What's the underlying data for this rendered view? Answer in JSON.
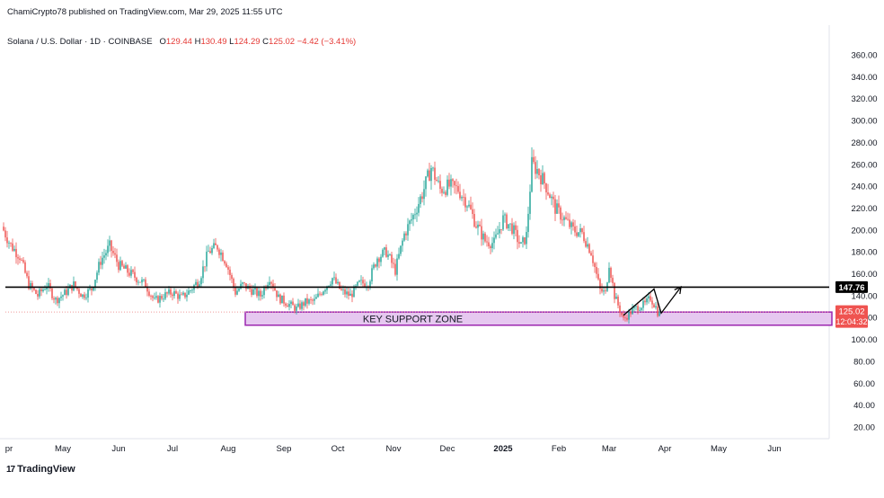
{
  "header": {
    "publisher": "ChamiCrypto78 published on TradingView.com, Mar 29, 2025 11:55 UTC",
    "symbol": "Solana / U.S. Dollar · 1D · COINBASE",
    "ohlc": [
      {
        "k": "O",
        "v": "129.44"
      },
      {
        "k": "H",
        "v": "130.49"
      },
      {
        "k": "L",
        "v": "124.29"
      },
      {
        "k": "C",
        "v": "125.02"
      }
    ],
    "change": "−4.42 (−3.41%)"
  },
  "brand": {
    "name": "TradingView",
    "logo_text": "17"
  },
  "colors": {
    "up": "#26a69a",
    "down": "#ef5350",
    "support_fill": "#e6c8f0",
    "support_border": "#9c27b0",
    "last_price_bg": "#ef5350",
    "level_bg": "#000000"
  },
  "chart_data": {
    "type": "candlestick",
    "y_ticks": [
      20,
      40,
      60,
      80,
      100,
      120,
      140,
      160,
      180,
      200,
      220,
      240,
      260,
      280,
      300,
      320,
      340,
      360
    ],
    "ylim": [
      10,
      370
    ],
    "x_labels": [
      "pr",
      "May",
      "Jun",
      "Jul",
      "Aug",
      "Sep",
      "Oct",
      "Nov",
      "Dec",
      "2025",
      "Feb",
      "Mar",
      "Apr",
      "May",
      "Jun"
    ],
    "bold_x_labels": [
      "2025"
    ],
    "resistance_level": 147.76,
    "resistance_label": "147.76",
    "last_price": 125.02,
    "last_price_label": "125.02",
    "countdown_label": "12:04:32",
    "support_zone": {
      "low": 113,
      "high": 125,
      "label": "KEY SUPPORT ZONE"
    },
    "projection_path": [
      {
        "date": "2025-03-09",
        "price": 122
      },
      {
        "date": "2025-03-26",
        "price": 146
      },
      {
        "date": "2025-03-30",
        "price": 124
      },
      {
        "date": "2025-04-10",
        "price": 148
      }
    ],
    "price_anchors": [
      [
        "2024-03-29",
        203
      ],
      [
        "2024-04-03",
        186
      ],
      [
        "2024-04-08",
        176
      ],
      [
        "2024-04-13",
        150
      ],
      [
        "2024-04-18",
        140
      ],
      [
        "2024-04-23",
        150
      ],
      [
        "2024-04-28",
        136
      ],
      [
        "2024-05-03",
        142
      ],
      [
        "2024-05-08",
        150
      ],
      [
        "2024-05-13",
        140
      ],
      [
        "2024-05-18",
        146
      ],
      [
        "2024-05-23",
        172
      ],
      [
        "2024-05-28",
        185
      ],
      [
        "2024-06-02",
        168
      ],
      [
        "2024-06-07",
        162
      ],
      [
        "2024-06-12",
        156
      ],
      [
        "2024-06-17",
        150
      ],
      [
        "2024-06-22",
        135
      ],
      [
        "2024-06-27",
        140
      ],
      [
        "2024-07-02",
        143
      ],
      [
        "2024-07-07",
        138
      ],
      [
        "2024-07-12",
        145
      ],
      [
        "2024-07-17",
        155
      ],
      [
        "2024-07-22",
        180
      ],
      [
        "2024-07-27",
        185
      ],
      [
        "2024-08-01",
        170
      ],
      [
        "2024-08-06",
        143
      ],
      [
        "2024-08-10",
        150
      ],
      [
        "2024-08-15",
        145
      ],
      [
        "2024-08-20",
        140
      ],
      [
        "2024-08-25",
        157
      ],
      [
        "2024-08-30",
        138
      ],
      [
        "2024-09-04",
        133
      ],
      [
        "2024-09-09",
        128
      ],
      [
        "2024-09-14",
        134
      ],
      [
        "2024-09-19",
        135
      ],
      [
        "2024-09-24",
        146
      ],
      [
        "2024-09-29",
        156
      ],
      [
        "2024-10-04",
        144
      ],
      [
        "2024-10-09",
        140
      ],
      [
        "2024-10-14",
        151
      ],
      [
        "2024-10-19",
        152
      ],
      [
        "2024-10-24",
        175
      ],
      [
        "2024-10-29",
        180
      ],
      [
        "2024-11-03",
        163
      ],
      [
        "2024-11-08",
        196
      ],
      [
        "2024-11-13",
        213
      ],
      [
        "2024-11-18",
        233
      ],
      [
        "2024-11-23",
        257
      ],
      [
        "2024-11-28",
        237
      ],
      [
        "2024-12-03",
        240
      ],
      [
        "2024-12-08",
        237
      ],
      [
        "2024-12-13",
        225
      ],
      [
        "2024-12-18",
        205
      ],
      [
        "2024-12-23",
        190
      ],
      [
        "2024-12-28",
        188
      ],
      [
        "2025-01-02",
        210
      ],
      [
        "2025-01-07",
        202
      ],
      [
        "2025-01-12",
        185
      ],
      [
        "2025-01-15",
        195
      ],
      [
        "2025-01-18",
        260
      ],
      [
        "2025-01-21",
        255
      ],
      [
        "2025-01-26",
        240
      ],
      [
        "2025-01-31",
        220
      ],
      [
        "2025-02-05",
        210
      ],
      [
        "2025-02-10",
        200
      ],
      [
        "2025-02-15",
        197
      ],
      [
        "2025-02-20",
        180
      ],
      [
        "2025-02-25",
        145
      ],
      [
        "2025-02-28",
        142
      ],
      [
        "2025-03-02",
        170
      ],
      [
        "2025-03-05",
        140
      ],
      [
        "2025-03-10",
        118
      ],
      [
        "2025-03-14",
        125
      ],
      [
        "2025-03-18",
        130
      ],
      [
        "2025-03-22",
        132
      ],
      [
        "2025-03-25",
        138
      ],
      [
        "2025-03-28",
        129.44
      ],
      [
        "2025-03-29",
        125.02
      ]
    ]
  }
}
